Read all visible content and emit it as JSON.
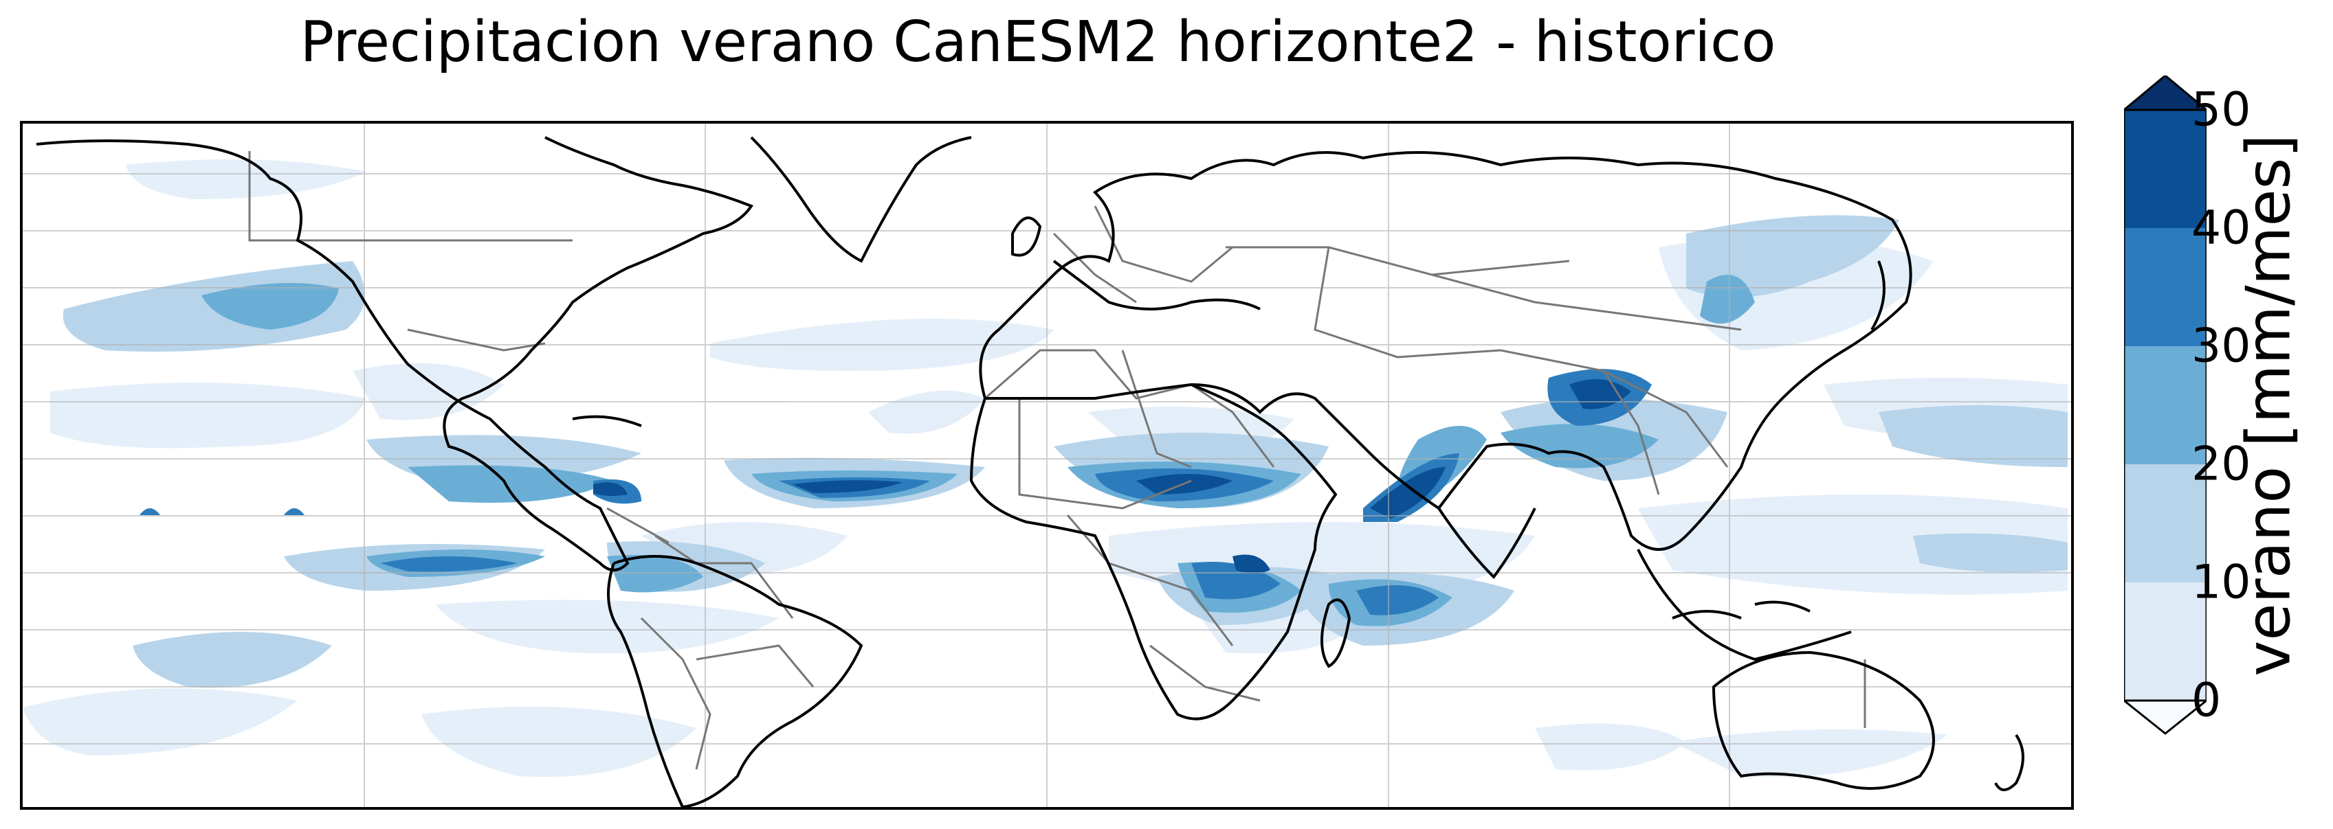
{
  "figure": {
    "title": "Precipitacion verano CanESM2 horizonte2 - historico"
  },
  "colorbar": {
    "label": "verano [mm/mes]",
    "ticks": [
      "0",
      "10",
      "20",
      "30",
      "40",
      "50"
    ],
    "levels": [
      0,
      10,
      20,
      30,
      40,
      50
    ],
    "extend": "both",
    "colors": [
      "#f7fbff",
      "#deebf7",
      "#b7d4ea",
      "#6aaed6",
      "#2c7cbd",
      "#0b4f94",
      "#08306b"
    ],
    "colormap": "Blues"
  },
  "map": {
    "projection": "PlateCarree",
    "gridlines": true,
    "coastlines": true,
    "country_borders": true
  }
}
